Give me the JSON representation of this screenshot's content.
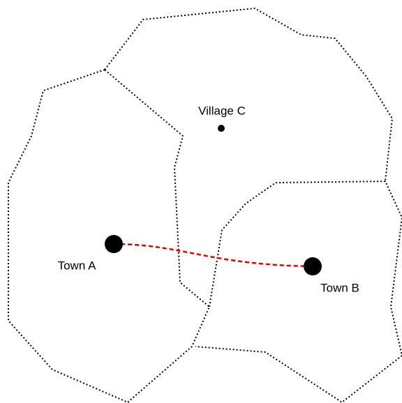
{
  "places": [
    {
      "label": "Town A"
    },
    {
      "label": "Town B"
    },
    {
      "label": "Village C"
    }
  ]
}
